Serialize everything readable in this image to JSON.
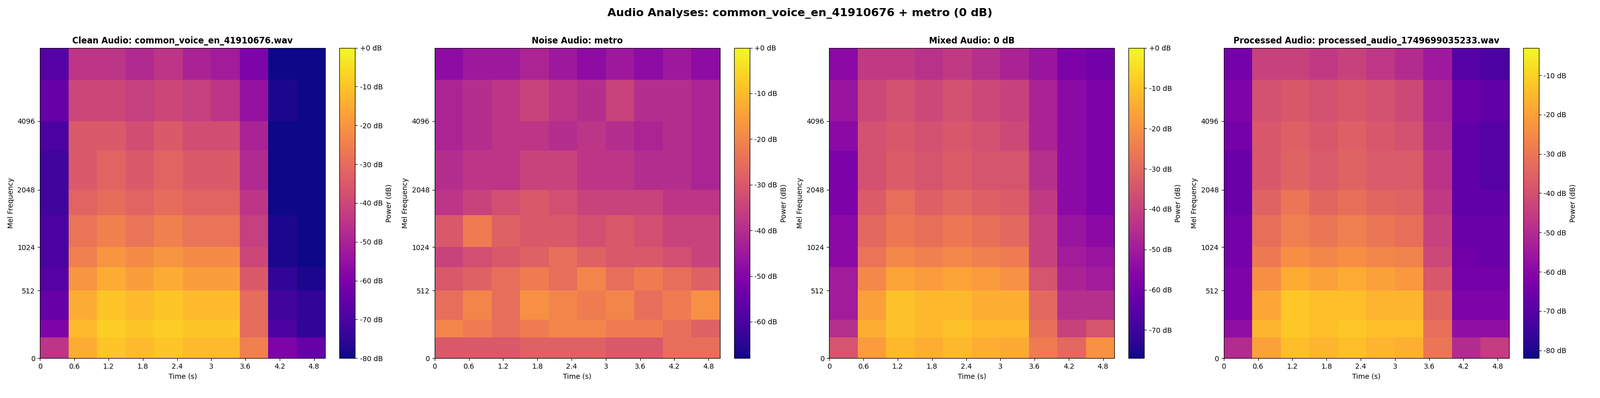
{
  "title": "Audio Analyses: common_voice_en_41910676 + metro (0 dB)",
  "chart_data": [
    {
      "type": "heatmap",
      "title": "Clean Audio: common_voice_en_41910676.wav",
      "x_label": "Time (s)",
      "y_label": "Mel Frequency",
      "colorbar_label": "Power (dB)",
      "xlim": [
        0,
        5.0
      ],
      "ylim": [
        0,
        8000
      ],
      "xticks": [
        0,
        0.6,
        1.2,
        1.8,
        2.4,
        3,
        3.6,
        4.2,
        4.8
      ],
      "yticks": [
        0,
        512,
        1024,
        2048,
        4096
      ],
      "time_edges": [
        0,
        0.5,
        1.0,
        1.5,
        2.0,
        2.5,
        3.0,
        3.5,
        4.0,
        4.5,
        5.0
      ],
      "freq_edges": [
        0,
        128,
        256,
        512,
        768,
        1024,
        1536,
        2048,
        3072,
        4096,
        6000,
        8000
      ],
      "clim": [
        -80,
        0
      ],
      "cticks": [
        {
          "value": 0,
          "label": "+0 dB"
        },
        {
          "value": -10,
          "label": "-10 dB"
        },
        {
          "value": -20,
          "label": "-20 dB"
        },
        {
          "value": -30,
          "label": "-30 dB"
        },
        {
          "value": -40,
          "label": "-40 dB"
        },
        {
          "value": -50,
          "label": "-50 dB"
        },
        {
          "value": -60,
          "label": "-60 dB"
        },
        {
          "value": -70,
          "label": "-70 dB"
        },
        {
          "value": -80,
          "label": "-80 dB"
        }
      ],
      "cells": [
        [
          -45,
          -15,
          -10,
          -12,
          -10,
          -12,
          -12,
          -25,
          -60,
          -65
        ],
        [
          -60,
          -12,
          -8,
          -10,
          -8,
          -10,
          -10,
          -30,
          -70,
          -75
        ],
        [
          -65,
          -15,
          -10,
          -12,
          -10,
          -12,
          -12,
          -30,
          -72,
          -75
        ],
        [
          -68,
          -20,
          -15,
          -18,
          -15,
          -18,
          -18,
          -35,
          -75,
          -78
        ],
        [
          -70,
          -25,
          -20,
          -22,
          -20,
          -22,
          -22,
          -40,
          -78,
          -80
        ],
        [
          -70,
          -28,
          -25,
          -28,
          -25,
          -28,
          -28,
          -42,
          -78,
          -80
        ],
        [
          -72,
          -32,
          -30,
          -32,
          -30,
          -32,
          -32,
          -45,
          -80,
          -80
        ],
        [
          -72,
          -35,
          -32,
          -35,
          -32,
          -35,
          -35,
          -48,
          -80,
          -80
        ],
        [
          -70,
          -35,
          -35,
          -38,
          -35,
          -38,
          -38,
          -50,
          -80,
          -80
        ],
        [
          -65,
          -40,
          -40,
          -42,
          -40,
          -42,
          -45,
          -55,
          -78,
          -80
        ],
        [
          -68,
          -45,
          -45,
          -48,
          -45,
          -50,
          -52,
          -60,
          -80,
          -80
        ]
      ]
    },
    {
      "type": "heatmap",
      "title": "Noise Audio: metro",
      "x_label": "Time (s)",
      "y_label": "Mel Frequency",
      "colorbar_label": "Power (dB)",
      "xlim": [
        0,
        5.0
      ],
      "ylim": [
        0,
        8000
      ],
      "xticks": [
        0,
        0.6,
        1.2,
        1.8,
        2.4,
        3,
        3.6,
        4.2,
        4.8
      ],
      "yticks": [
        0,
        512,
        1024,
        2048,
        4096
      ],
      "time_edges": [
        0,
        0.5,
        1.0,
        1.5,
        2.0,
        2.5,
        3.0,
        3.5,
        4.0,
        4.5,
        5.0
      ],
      "freq_edges": [
        0,
        128,
        256,
        512,
        768,
        1024,
        1536,
        2048,
        3072,
        4096,
        6000,
        8000
      ],
      "clim": [
        -68,
        0
      ],
      "cticks": [
        {
          "value": 0,
          "label": "+0 dB"
        },
        {
          "value": -10,
          "label": "-10 dB"
        },
        {
          "value": -20,
          "label": "-20 dB"
        },
        {
          "value": -30,
          "label": "-30 dB"
        },
        {
          "value": -40,
          "label": "-40 dB"
        },
        {
          "value": -50,
          "label": "-50 dB"
        },
        {
          "value": -60,
          "label": "-60 dB"
        }
      ],
      "cells": [
        [
          -30,
          -30,
          -30,
          -28,
          -28,
          -28,
          -30,
          -30,
          -25,
          -25
        ],
        [
          -20,
          -22,
          -25,
          -22,
          -20,
          -20,
          -22,
          -22,
          -25,
          -28
        ],
        [
          -25,
          -20,
          -25,
          -18,
          -20,
          -22,
          -20,
          -25,
          -22,
          -18
        ],
        [
          -30,
          -28,
          -25,
          -22,
          -25,
          -20,
          -25,
          -22,
          -25,
          -28
        ],
        [
          -35,
          -32,
          -30,
          -28,
          -25,
          -28,
          -30,
          -30,
          -32,
          -35
        ],
        [
          -30,
          -22,
          -28,
          -30,
          -30,
          -32,
          -30,
          -32,
          -35,
          -35
        ],
        [
          -38,
          -35,
          -32,
          -30,
          -32,
          -35,
          -35,
          -35,
          -38,
          -38
        ],
        [
          -40,
          -38,
          -38,
          -35,
          -35,
          -38,
          -38,
          -40,
          -40,
          -42
        ],
        [
          -42,
          -40,
          -38,
          -38,
          -40,
          -38,
          -40,
          -42,
          -40,
          -42
        ],
        [
          -42,
          -40,
          -38,
          -35,
          -38,
          -40,
          -35,
          -40,
          -40,
          -42
        ],
        [
          -48,
          -45,
          -45,
          -42,
          -45,
          -48,
          -45,
          -48,
          -45,
          -48
        ]
      ]
    },
    {
      "type": "heatmap",
      "title": "Mixed Audio: 0 dB",
      "x_label": "Time (s)",
      "y_label": "Mel Frequency",
      "colorbar_label": "Power (dB)",
      "xlim": [
        0,
        5.0
      ],
      "ylim": [
        0,
        8000
      ],
      "xticks": [
        0,
        0.6,
        1.2,
        1.8,
        2.4,
        3,
        3.6,
        4.2,
        4.8
      ],
      "yticks": [
        0,
        512,
        1024,
        2048,
        4096
      ],
      "time_edges": [
        0,
        0.5,
        1.0,
        1.5,
        2.0,
        2.5,
        3.0,
        3.5,
        4.0,
        4.5,
        5.0
      ],
      "freq_edges": [
        0,
        128,
        256,
        512,
        768,
        1024,
        1536,
        2048,
        3072,
        4096,
        6000,
        8000
      ],
      "clim": [
        -77,
        0
      ],
      "cticks": [
        {
          "value": 0,
          "label": "+0 dB"
        },
        {
          "value": -10,
          "label": "-10 dB"
        },
        {
          "value": -20,
          "label": "-20 dB"
        },
        {
          "value": -30,
          "label": "-30 dB"
        },
        {
          "value": -40,
          "label": "-40 dB"
        },
        {
          "value": -50,
          "label": "-50 dB"
        },
        {
          "value": -60,
          "label": "-60 dB"
        },
        {
          "value": -70,
          "label": "-70 dB"
        }
      ],
      "cells": [
        [
          -35,
          -18,
          -12,
          -14,
          -12,
          -14,
          -15,
          -25,
          -30,
          -20
        ],
        [
          -45,
          -14,
          -10,
          -12,
          -10,
          -12,
          -12,
          -28,
          -40,
          -35
        ],
        [
          -50,
          -17,
          -10,
          -12,
          -12,
          -14,
          -14,
          -30,
          -45,
          -45
        ],
        [
          -50,
          -22,
          -16,
          -18,
          -16,
          -18,
          -20,
          -35,
          -48,
          -50
        ],
        [
          -55,
          -27,
          -22,
          -24,
          -22,
          -24,
          -25,
          -40,
          -50,
          -52
        ],
        [
          -55,
          -30,
          -26,
          -28,
          -26,
          -28,
          -30,
          -40,
          -52,
          -55
        ],
        [
          -58,
          -33,
          -28,
          -32,
          -30,
          -32,
          -33,
          -42,
          -55,
          -58
        ],
        [
          -58,
          -36,
          -33,
          -35,
          -33,
          -35,
          -35,
          -45,
          -55,
          -58
        ],
        [
          -55,
          -36,
          -34,
          -36,
          -34,
          -36,
          -38,
          -48,
          -55,
          -58
        ],
        [
          -52,
          -38,
          -36,
          -38,
          -36,
          -38,
          -40,
          -48,
          -55,
          -58
        ],
        [
          -55,
          -42,
          -42,
          -44,
          -42,
          -45,
          -48,
          -52,
          -58,
          -60
        ]
      ]
    },
    {
      "type": "heatmap",
      "title": "Processed Audio: processed_audio_1749699035233.wav",
      "x_label": "Time (s)",
      "y_label": "Mel Frequency",
      "colorbar_label": "Power (dB)",
      "xlim": [
        0,
        5.0
      ],
      "ylim": [
        0,
        8000
      ],
      "xticks": [
        0,
        0.6,
        1.2,
        1.8,
        2.4,
        3,
        3.6,
        4.2,
        4.8
      ],
      "yticks": [
        0,
        512,
        1024,
        2048,
        4096
      ],
      "time_edges": [
        0,
        0.5,
        1.0,
        1.5,
        2.0,
        2.5,
        3.0,
        3.5,
        4.0,
        4.5,
        5.0
      ],
      "freq_edges": [
        0,
        128,
        256,
        512,
        768,
        1024,
        1536,
        2048,
        3072,
        4096,
        6000,
        8000
      ],
      "clim": [
        -82,
        -3
      ],
      "cticks": [
        {
          "value": -10,
          "label": "-10 dB"
        },
        {
          "value": -20,
          "label": "-20 dB"
        },
        {
          "value": -30,
          "label": "-30 dB"
        },
        {
          "value": -40,
          "label": "-40 dB"
        },
        {
          "value": -50,
          "label": "-50 dB"
        },
        {
          "value": -60,
          "label": "-60 dB"
        },
        {
          "value": -70,
          "label": "-70 dB"
        },
        {
          "value": -80,
          "label": "-80 dB"
        }
      ],
      "cells": [
        [
          -50,
          -20,
          -14,
          -16,
          -14,
          -16,
          -17,
          -30,
          -50,
          -45
        ],
        [
          -58,
          -16,
          -12,
          -14,
          -12,
          -14,
          -14,
          -32,
          -58,
          -58
        ],
        [
          -62,
          -19,
          -12,
          -14,
          -14,
          -16,
          -16,
          -34,
          -62,
          -62
        ],
        [
          -62,
          -24,
          -18,
          -20,
          -18,
          -20,
          -22,
          -38,
          -64,
          -64
        ],
        [
          -64,
          -29,
          -24,
          -26,
          -24,
          -26,
          -27,
          -42,
          -65,
          -66
        ],
        [
          -64,
          -32,
          -28,
          -30,
          -28,
          -30,
          -32,
          -44,
          -66,
          -66
        ],
        [
          -66,
          -35,
          -30,
          -34,
          -32,
          -34,
          -35,
          -46,
          -68,
          -68
        ],
        [
          -66,
          -38,
          -35,
          -37,
          -35,
          -37,
          -37,
          -48,
          -68,
          -70
        ],
        [
          -64,
          -38,
          -36,
          -38,
          -36,
          -38,
          -40,
          -50,
          -68,
          -70
        ],
        [
          -62,
          -40,
          -38,
          -40,
          -38,
          -40,
          -42,
          -52,
          -66,
          -68
        ],
        [
          -64,
          -44,
          -44,
          -46,
          -44,
          -47,
          -50,
          -55,
          -70,
          -72
        ]
      ]
    }
  ]
}
